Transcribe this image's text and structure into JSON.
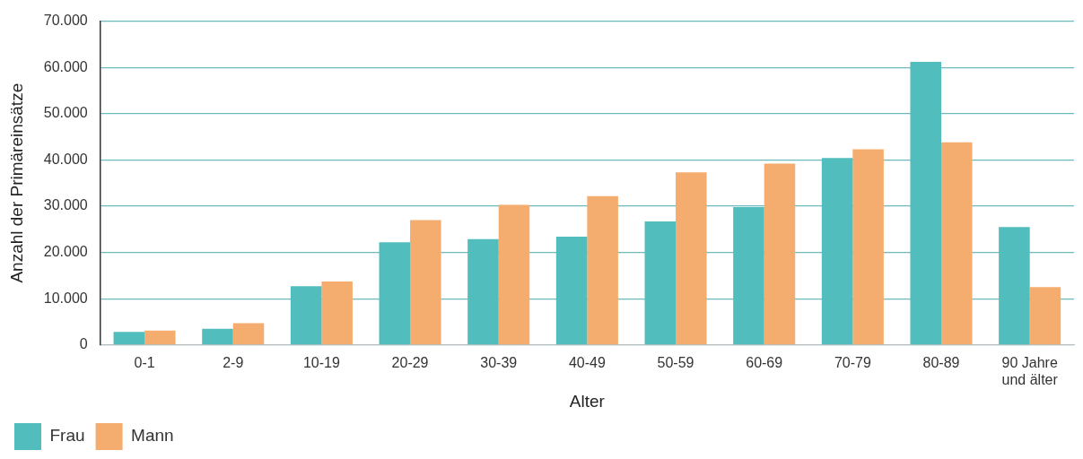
{
  "chart_data": {
    "type": "bar",
    "xlabel": "Alter",
    "ylabel": "Anzahl der Primäreinsätze",
    "categories": [
      "0-1",
      "2-9",
      "10-19",
      "20-29",
      "30-39",
      "40-49",
      "50-59",
      "60-69",
      "70-79",
      "80-89",
      "90 Jahre und älter"
    ],
    "series": [
      {
        "name": "Frau",
        "color": "#52bdbd",
        "values": [
          2800,
          3500,
          12700,
          22200,
          22900,
          23400,
          26700,
          29800,
          40400,
          61200,
          25500
        ]
      },
      {
        "name": "Mann",
        "color": "#f5ad6f",
        "values": [
          3100,
          4700,
          13700,
          27000,
          30300,
          32200,
          37300,
          39200,
          42300,
          43800,
          12500
        ]
      }
    ],
    "ylim": [
      0,
      70000
    ],
    "yticks": [
      0,
      {
        "value": 10000,
        "label": "10.000"
      },
      {
        "value": 20000,
        "label": "20.000"
      },
      {
        "value": 30000,
        "label": "30.000"
      },
      {
        "value": 40000,
        "label": "40.000"
      },
      {
        "value": 50000,
        "label": "50.000"
      },
      {
        "value": 60000,
        "label": "60.000"
      },
      {
        "value": 70000,
        "label": "70.000"
      }
    ],
    "grid": "y",
    "legend": "bottom left"
  }
}
